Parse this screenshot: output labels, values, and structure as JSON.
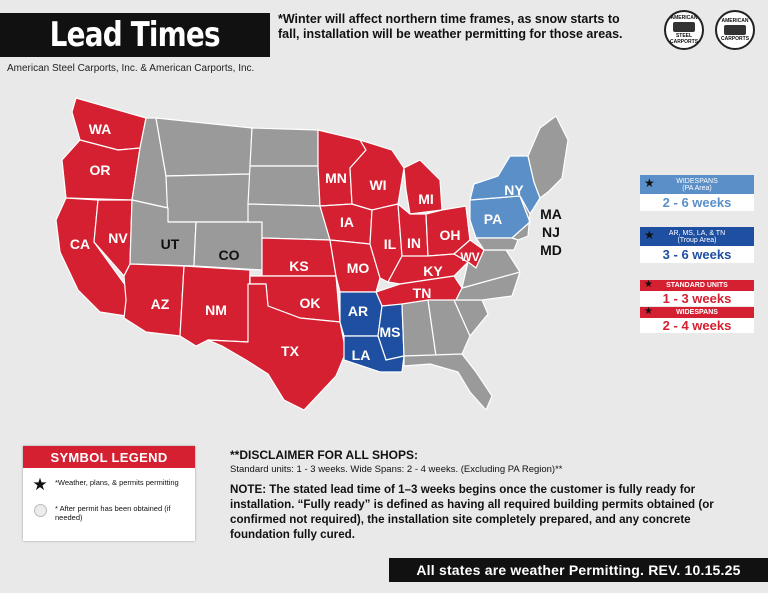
{
  "header": {
    "title": "Lead Times",
    "subtitle": "American Steel Carports, Inc. & American Carports, Inc.",
    "winter_note": "*Winter will affect northern time frames, as snow starts to fall, installation will be weather permitting for those areas."
  },
  "logos": [
    {
      "top": "AMERICAN",
      "middle": "STEEL",
      "bottom": "CARPORTS"
    },
    {
      "top": "AMERICAN",
      "middle": "",
      "bottom": "CARPORTS"
    }
  ],
  "colors": {
    "red": "#d42030",
    "blue_dark": "#1f4fa0",
    "blue_light": "#5a8fc7",
    "gray": "#9a9a9a",
    "background": "#e9e9e9"
  },
  "map": {
    "red_states": [
      "WA",
      "OR",
      "CA",
      "NV",
      "AZ",
      "NM",
      "TX",
      "OK",
      "KS",
      "MN",
      "WI",
      "IA",
      "MO",
      "IL",
      "IN",
      "MI",
      "OH",
      "KY",
      "WV",
      "TN"
    ],
    "dark_blue_states": [
      "AR",
      "MS",
      "LA"
    ],
    "light_blue_states": [
      "NY",
      "PA"
    ],
    "labels": {
      "WA": "WA",
      "OR": "OR",
      "CA": "CA",
      "NV": "NV",
      "UT": "UT",
      "CO": "CO",
      "AZ": "AZ",
      "NM": "NM",
      "TX": "TX",
      "KS": "KS",
      "OK": "OK",
      "MN": "MN",
      "WI": "WI",
      "IA": "IA",
      "MO": "MO",
      "IL": "IL",
      "IN": "IN",
      "MI": "MI",
      "OH": "OH",
      "KY": "KY",
      "WV": "WV",
      "TN": "TN",
      "AR": "AR",
      "MS": "MS",
      "LA": "LA",
      "NY": "NY",
      "PA": "PA",
      "MA": "MA",
      "NJ": "NJ",
      "MD": "MD"
    }
  },
  "legend_cards": {
    "widespans_pa": {
      "heading": "WIDESPANS\n(PA Area)",
      "value": "2 - 6 weeks"
    },
    "troup": {
      "heading": "AR, MS, LA, & TN\n(Troup Area)",
      "value": "3 - 6 weeks"
    },
    "standard": {
      "heading": "STANDARD UNITS",
      "value": "1 - 3 weeks"
    },
    "widespans": {
      "heading": "WIDESPANS",
      "value": "2 - 4 weeks"
    }
  },
  "symbol_legend": {
    "title": "SYMBOL LEGEND",
    "star_text": "*Weather, plans, & permits permitting",
    "circle_text": "* After permit has been obtained (if needed)"
  },
  "disclaimer": {
    "heading": "**DISCLAIMER FOR ALL SHOPS:",
    "summary": "Standard units: 1 - 3 weeks. Wide Spans: 2 - 4 weeks. (Excluding PA Region)**",
    "note": "NOTE: The stated lead time of 1–3 weeks begins once the customer is fully ready for installation. “Fully ready” is defined as having all required building permits obtained (or confirmed not required), the installation site completely prepared, and any concrete foundation fully cured."
  },
  "footer": {
    "banner": "All states are weather Permitting. REV. 10.15.25"
  }
}
